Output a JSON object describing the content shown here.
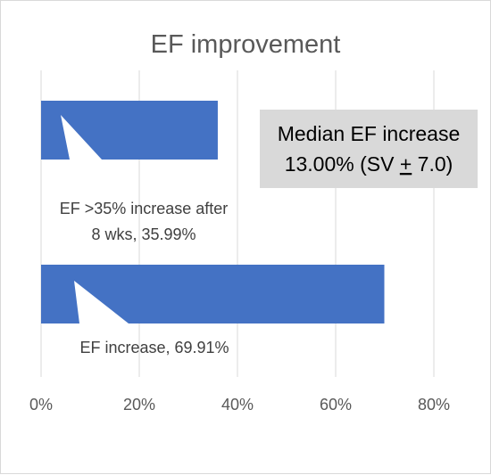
{
  "chart_data": {
    "type": "bar",
    "orientation": "horizontal",
    "title": "EF improvement",
    "categories": [
      "EF >35% increase after 8 wks",
      "EF increase"
    ],
    "values": [
      35.99,
      69.91
    ],
    "data_labels": [
      [
        "EF >35% increase after",
        "8 wks, 35.99%"
      ],
      [
        "EF increase, 69.91%"
      ]
    ],
    "x_ticks": [
      "0%",
      "20%",
      "40%",
      "60%",
      "80%"
    ],
    "xlim": [
      0,
      80
    ],
    "grid": true,
    "annotation": {
      "line1": "Median EF increase",
      "line2_prefix": "13.00% (SV ",
      "line2_pm": "+",
      "line2_suffix": " 7.0)"
    },
    "colors": {
      "bar": "#4472c4",
      "grid": "#d9d9d9",
      "annotation_box": "#d9d9d9",
      "text": "#595959"
    }
  }
}
